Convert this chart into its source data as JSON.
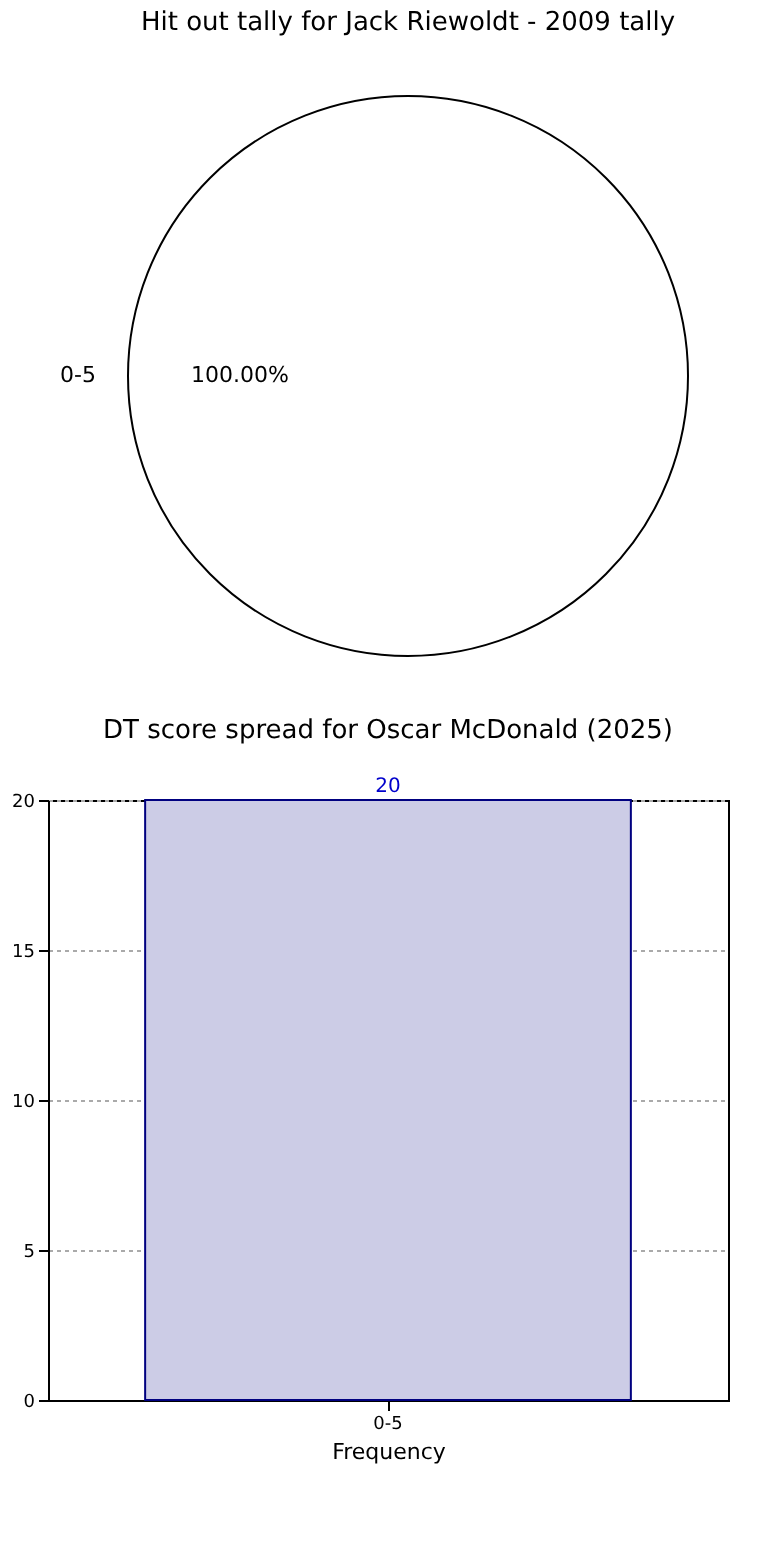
{
  "chart_data": [
    {
      "type": "pie",
      "title": "Hit out tally for Jack Riewoldt - 2009 tally",
      "categories": [
        "0-5"
      ],
      "values": [
        100
      ],
      "colors": [
        "#ffffff"
      ],
      "value_labels": [
        "100.00%"
      ],
      "legend": false
    },
    {
      "type": "bar",
      "title": "DT score spread for Oscar McDonald (2025)",
      "xlabel": "Frequency",
      "categories": [
        "0-5"
      ],
      "values": [
        20
      ],
      "color": "#cccce6",
      "ylim": [
        0,
        20
      ],
      "yticks": [
        0,
        5,
        10,
        15,
        20
      ],
      "grid": true,
      "data_labels": true
    }
  ]
}
